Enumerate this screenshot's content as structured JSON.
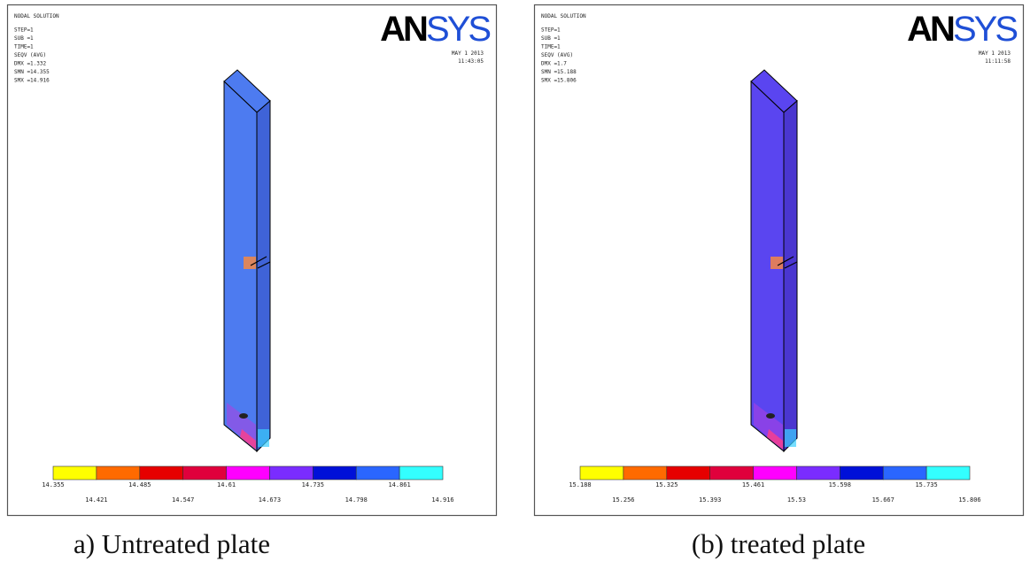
{
  "logo": {
    "an": "AN",
    "sys": "SYS"
  },
  "panels": [
    {
      "header": [
        "NODAL SOLUTION",
        "STEP=1",
        "SUB =1",
        "TIME=1",
        "SEQV (AVG)",
        "DMX =1.332",
        "SMN =14.355",
        "SMX =14.916"
      ],
      "date": "MAY 1 2013",
      "time": "11:43:05",
      "legend": [
        "14.355",
        "14.421",
        "14.485",
        "14.547",
        "14.61",
        "14.673",
        "14.735",
        "14.798",
        "14.861",
        "14.916"
      ],
      "caption": "a) Untreated plate"
    },
    {
      "header": [
        "NODAL SOLUTION",
        "STEP=1",
        "SUB =1",
        "TIME=1",
        "SEQV (AVG)",
        "DMX =1.7",
        "SMN =15.188",
        "SMX =15.806"
      ],
      "date": "MAY 1 2013",
      "time": "11:11:58",
      "legend": [
        "15.188",
        "15.256",
        "15.325",
        "15.393",
        "15.461",
        "15.53",
        "15.598",
        "15.667",
        "15.735",
        "15.806"
      ],
      "caption": "(b) treated plate"
    }
  ]
}
